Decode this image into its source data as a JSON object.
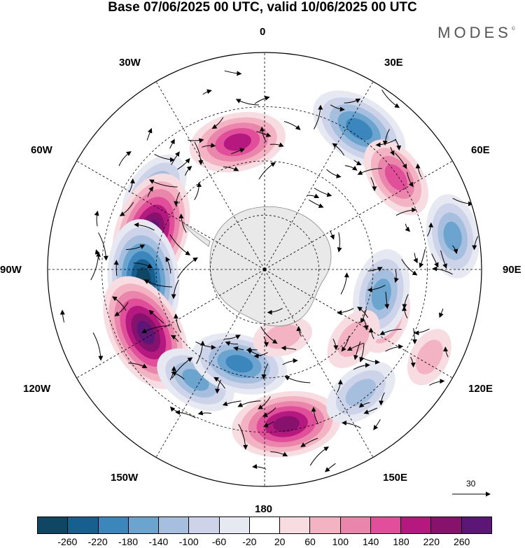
{
  "title": "Base 07/06/2025 00 UTC, valid 10/06/2025 00 UTC",
  "logo": {
    "text": "MODES",
    "mark": "©"
  },
  "map": {
    "projection": "south-polar-stereographic",
    "center": {
      "lon": 0,
      "lat": -90
    },
    "longitude_labels": {
      "top": "0",
      "upper_right": "30E",
      "right_upper": "60E",
      "right": "90E",
      "right_lower": "120E",
      "lower_right": "150E",
      "bottom": "180",
      "lower_left": "150W",
      "left_lower": "120W",
      "left": "90W",
      "left_upper": "60W",
      "upper_left": "30W"
    },
    "anomalies": [
      {
        "lon": -12,
        "colat": 0.6,
        "value": 180
      },
      {
        "lon": 34,
        "colat": 0.78,
        "value": -200
      },
      {
        "lon": 55,
        "colat": 0.74,
        "value": 140
      },
      {
        "lon": 80,
        "colat": 0.88,
        "value": -140
      },
      {
        "lon": -55,
        "colat": 0.62,
        "value": -140
      },
      {
        "lon": -72,
        "colat": 0.55,
        "value": 260
      },
      {
        "lon": -95,
        "colat": 0.56,
        "value": -260
      },
      {
        "lon": -118,
        "colat": 0.62,
        "value": 260
      },
      {
        "lon": -148,
        "colat": 0.6,
        "value": -140
      },
      {
        "lon": -165,
        "colat": 0.45,
        "value": -180
      },
      {
        "lon": 172,
        "colat": 0.72,
        "value": 220
      },
      {
        "lon": 142,
        "colat": 0.72,
        "value": -120
      },
      {
        "lon": 112,
        "colat": 0.6,
        "value": 100
      },
      {
        "lon": 102,
        "colat": 0.55,
        "value": -160
      },
      {
        "lon": 128,
        "colat": 0.52,
        "value": 80
      },
      {
        "lon": 118,
        "colat": 0.86,
        "value": 60
      },
      {
        "lon": 165,
        "colat": 0.32,
        "value": 60
      }
    ]
  },
  "colorbar": {
    "colors": [
      "#0f4663",
      "#175f8e",
      "#3a86bd",
      "#6aa4cf",
      "#a6bfde",
      "#cdd3e8",
      "#e6e8f2",
      "#ffffff",
      "#f7dde2",
      "#f3b3c2",
      "#ea85ac",
      "#e14e9a",
      "#b5187f",
      "#86126e",
      "#5c1675"
    ],
    "tick_labels": [
      "-260",
      "-220",
      "-180",
      "-140",
      "-100",
      "-60",
      "-20",
      "20",
      "60",
      "100",
      "140",
      "180",
      "220",
      "260"
    ]
  },
  "reference_vector": {
    "label": "30"
  }
}
